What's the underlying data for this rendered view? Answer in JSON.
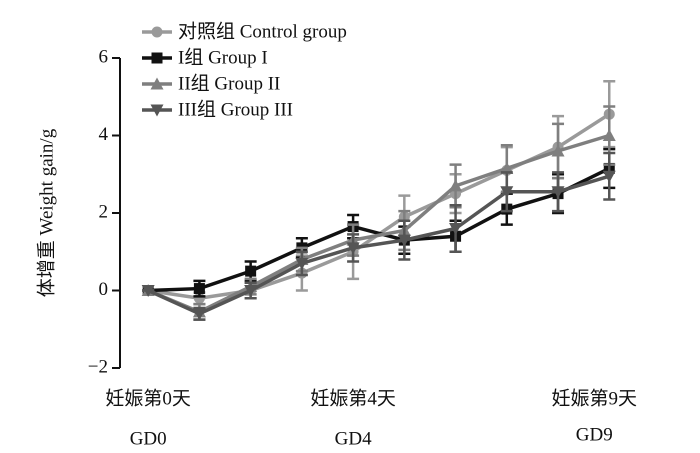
{
  "chart_data": {
    "type": "line",
    "ylabel": "体增重  Weight gain/g",
    "x": [
      0,
      1,
      2,
      3,
      4,
      5,
      6,
      7,
      8,
      9
    ],
    "xlim": [
      -0.55,
      9.6
    ],
    "xticks": [
      {
        "value": 0,
        "label": [
          "妊娠第0天",
          "GD0"
        ]
      },
      {
        "value": 4,
        "label": [
          "妊娠第4天",
          "GD4"
        ]
      },
      {
        "value": 9,
        "label": [
          "妊娠第9天",
          "GD9"
        ]
      }
    ],
    "ylim": [
      -2,
      6
    ],
    "yticks": [
      {
        "value": -2,
        "label": "−2"
      },
      0,
      2,
      4,
      6
    ],
    "legend": "upper left",
    "series": [
      {
        "name": "对照组 Control group",
        "color": "#9a9a9a",
        "marker": "circle",
        "values": [
          0,
          -0.2,
          0.0,
          0.45,
          1.0,
          1.9,
          2.5,
          3.1,
          3.7,
          4.55
        ],
        "errors": [
          0,
          0.15,
          0.2,
          0.45,
          0.7,
          0.55,
          0.5,
          0.6,
          0.8,
          0.85
        ]
      },
      {
        "name": "I组 Group I",
        "color": "#111111",
        "marker": "square",
        "values": [
          0,
          0.05,
          0.5,
          1.1,
          1.65,
          1.3,
          1.4,
          2.1,
          2.5,
          3.15
        ],
        "errors": [
          0,
          0.2,
          0.25,
          0.25,
          0.3,
          0.35,
          0.4,
          0.4,
          0.5,
          0.5
        ]
      },
      {
        "name": "II组 Group II",
        "color": "#7f7f7f",
        "marker": "triangle-up",
        "values": [
          0,
          -0.55,
          0.1,
          0.8,
          1.3,
          1.55,
          2.7,
          3.15,
          3.6,
          4.0
        ],
        "errors": [
          0,
          0.2,
          0.2,
          0.3,
          0.4,
          0.5,
          0.55,
          0.6,
          0.7,
          0.75
        ]
      },
      {
        "name": "III组 Group III",
        "color": "#555555",
        "marker": "triangle-down",
        "values": [
          0,
          -0.6,
          0.0,
          0.7,
          1.1,
          1.3,
          1.6,
          2.55,
          2.55,
          2.95
        ],
        "errors": [
          0,
          0.15,
          0.2,
          0.3,
          0.35,
          0.5,
          0.6,
          0.5,
          0.5,
          0.6
        ]
      }
    ]
  }
}
